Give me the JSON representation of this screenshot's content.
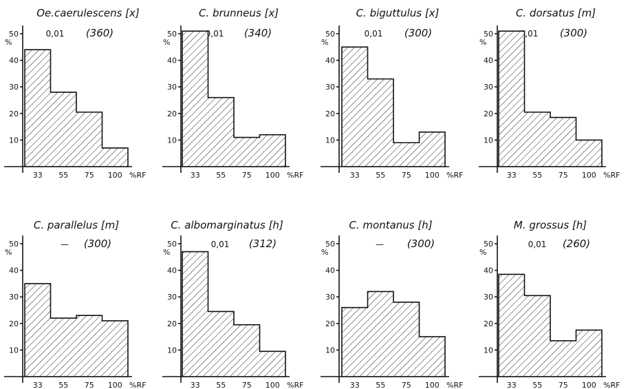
{
  "figure": {
    "panels": [
      {
        "title": "Oe.caerulescens [x]",
        "note": "0,01",
        "count": "(360)"
      },
      {
        "title": "C. brunneus [x]",
        "note": "0,01",
        "count": "(340)"
      },
      {
        "title": "C. biguttulus [x]",
        "note": "0,01",
        "count": "(300)"
      },
      {
        "title": "C. dorsatus [m]",
        "note": "0,01",
        "count": "(300)"
      },
      {
        "title": "C. parallelus [m]",
        "note": "—",
        "count": "(300)"
      },
      {
        "title": "C. albomarginatus [h]",
        "note": "0,01",
        "count": "(312)"
      },
      {
        "title": "C. montanus [h]",
        "note": "—",
        "count": "(300)"
      },
      {
        "title": "M. grossus [h]",
        "note": "0,01",
        "count": "(260)"
      }
    ]
  },
  "chart_data": [
    {
      "type": "bar",
      "title": "Oe.caerulescens [x]",
      "categories": [
        "33",
        "55",
        "75",
        "100"
      ],
      "values": [
        44,
        28,
        20.5,
        7
      ],
      "xlabel": "%RF",
      "ylabel": "%",
      "yticks": [
        10,
        20,
        30,
        40,
        50
      ],
      "ylim": [
        0,
        55
      ],
      "grid": false
    },
    {
      "type": "bar",
      "title": "C. brunneus [x]",
      "categories": [
        "33",
        "55",
        "75",
        "100"
      ],
      "values": [
        51,
        26,
        11,
        12
      ],
      "xlabel": "%RF",
      "ylabel": "%",
      "yticks": [
        10,
        20,
        30,
        40,
        50
      ],
      "ylim": [
        0,
        55
      ],
      "grid": false
    },
    {
      "type": "bar",
      "title": "C. biguttulus [x]",
      "categories": [
        "33",
        "55",
        "75",
        "100"
      ],
      "values": [
        45,
        33,
        9,
        13
      ],
      "xlabel": "%RF",
      "ylabel": "%",
      "yticks": [
        10,
        20,
        30,
        40,
        50
      ],
      "ylim": [
        0,
        55
      ],
      "grid": false
    },
    {
      "type": "bar",
      "title": "C. dorsatus [m]",
      "categories": [
        "33",
        "55",
        "75",
        "100"
      ],
      "values": [
        51,
        20.5,
        18.5,
        10
      ],
      "xlabel": "%RF",
      "ylabel": "%",
      "yticks": [
        10,
        20,
        30,
        40,
        50
      ],
      "ylim": [
        0,
        55
      ],
      "grid": false
    },
    {
      "type": "bar",
      "title": "C. parallelus [m]",
      "categories": [
        "33",
        "55",
        "75",
        "100"
      ],
      "values": [
        35,
        22,
        23,
        21
      ],
      "xlabel": "%RF",
      "ylabel": "%",
      "yticks": [
        10,
        20,
        30,
        40,
        50
      ],
      "ylim": [
        0,
        55
      ],
      "grid": false
    },
    {
      "type": "bar",
      "title": "C. albomarginatus [h]",
      "categories": [
        "33",
        "55",
        "75",
        "100"
      ],
      "values": [
        47,
        24.5,
        19.5,
        9.5
      ],
      "xlabel": "%RF",
      "ylabel": "%",
      "yticks": [
        10,
        20,
        30,
        40,
        50
      ],
      "ylim": [
        0,
        55
      ],
      "grid": false
    },
    {
      "type": "bar",
      "title": "C. montanus [h]",
      "categories": [
        "33",
        "55",
        "75",
        "100"
      ],
      "values": [
        26,
        32,
        28,
        15
      ],
      "xlabel": "%RF",
      "ylabel": "%",
      "yticks": [
        10,
        20,
        30,
        40,
        50
      ],
      "ylim": [
        0,
        55
      ],
      "grid": false
    },
    {
      "type": "bar",
      "title": "M. grossus [h]",
      "categories": [
        "33",
        "55",
        "75",
        "100"
      ],
      "values": [
        38.5,
        30.5,
        13.5,
        17.5
      ],
      "xlabel": "%RF",
      "ylabel": "%",
      "yticks": [
        10,
        20,
        30,
        40,
        50
      ],
      "ylim": [
        0,
        55
      ],
      "grid": false
    }
  ]
}
